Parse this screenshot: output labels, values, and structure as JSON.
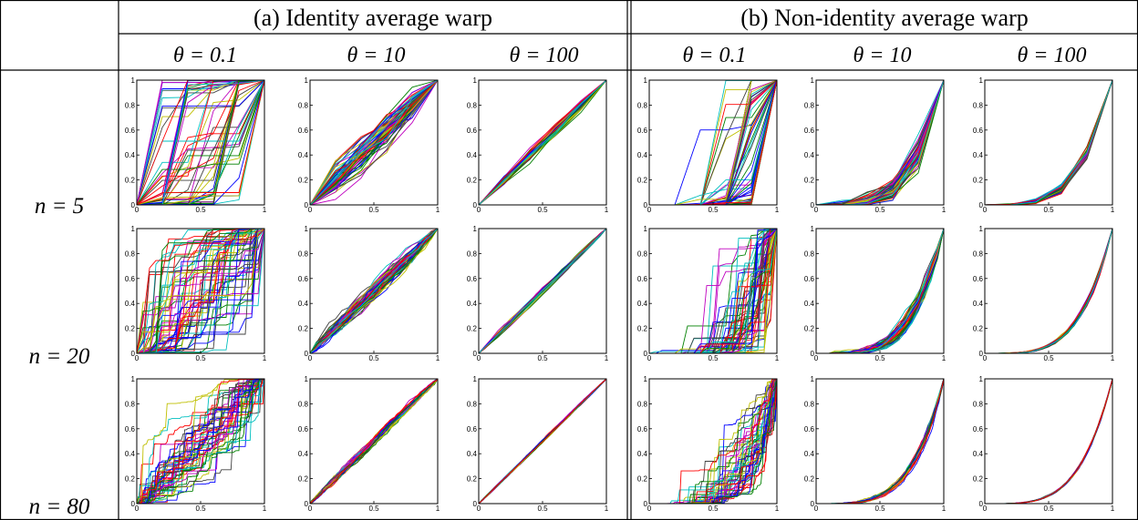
{
  "header": {
    "groups": [
      "(a) Identity average warp",
      "(b) Non-identity average warp"
    ],
    "thetas": [
      "θ = 0.1",
      "θ = 10",
      "θ = 100"
    ]
  },
  "rows": [
    "n = 5",
    "n = 20",
    "n = 80"
  ],
  "axes": {
    "yticks": [
      0,
      0.2,
      0.4,
      0.6,
      0.8,
      1
    ],
    "xticks": [
      0,
      0.5,
      1
    ]
  }
}
